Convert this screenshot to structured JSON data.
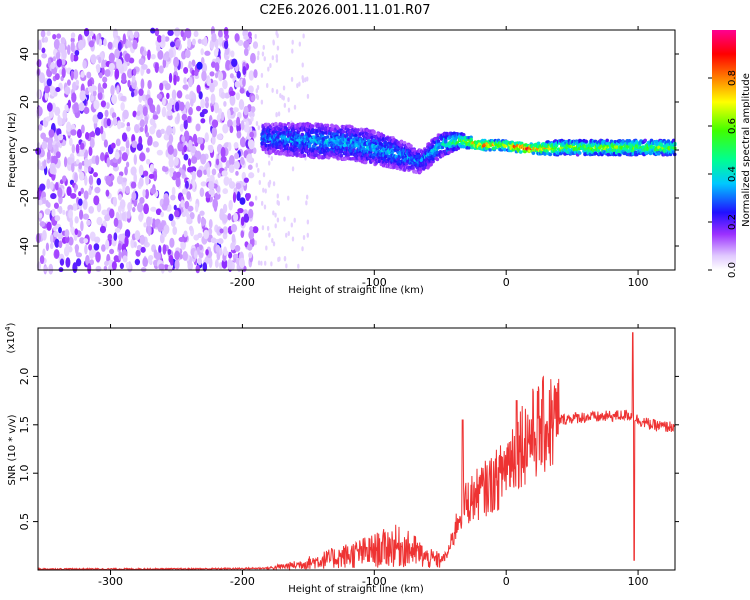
{
  "chart_data": [
    {
      "type": "heatmap",
      "title": "C2E6.2026.001.11.01.R07",
      "xlabel": "Height of straight line (km)",
      "ylabel": "Frequency (Hz)",
      "xlim": [
        -355,
        128
      ],
      "ylim": [
        -50,
        50
      ],
      "xticks": [
        -300,
        -200,
        -100,
        0,
        100
      ],
      "xtick_labels": [
        "-300",
        "-200",
        "-100",
        "0",
        "100"
      ],
      "yticks": [
        -40,
        -20,
        0,
        20,
        40
      ],
      "ytick_labels": [
        "-40",
        "-20",
        "0",
        "20",
        "40"
      ],
      "colorbar": {
        "label": "Normalized spectral amplitude",
        "range": [
          0,
          1
        ],
        "ticks": [
          0.0,
          0.2,
          0.4,
          0.6,
          0.8
        ],
        "tick_labels": [
          "0.0",
          "0.2",
          "0.4",
          "0.6",
          "0.8"
        ],
        "colors": [
          "#ffffff",
          "#e8d0ff",
          "#8a2be2",
          "#1a10ff",
          "#00ffff",
          "#00ff40",
          "#ffff00",
          "#ff8000",
          "#ff0000",
          "#ff00a0"
        ]
      },
      "noise_region": {
        "x_range": [
          -355,
          -190
        ],
        "amplitude": "low (0.05-0.2)"
      },
      "signal_track": [
        {
          "x": -185,
          "f_center": 5,
          "f_halfwidth": 6,
          "amp": 0.3
        },
        {
          "x": -150,
          "f_center": 4,
          "f_halfwidth": 7,
          "amp": 0.35
        },
        {
          "x": -120,
          "f_center": 3,
          "f_halfwidth": 7,
          "amp": 0.35
        },
        {
          "x": -100,
          "f_center": 1,
          "f_halfwidth": 7,
          "amp": 0.35
        },
        {
          "x": -80,
          "f_center": -2,
          "f_halfwidth": 6,
          "amp": 0.35
        },
        {
          "x": -65,
          "f_center": -5,
          "f_halfwidth": 5,
          "amp": 0.3
        },
        {
          "x": -50,
          "f_center": 2,
          "f_halfwidth": 5,
          "amp": 0.4
        },
        {
          "x": -35,
          "f_center": 4,
          "f_halfwidth": 3,
          "amp": 0.55
        },
        {
          "x": -20,
          "f_center": 2,
          "f_halfwidth": 2,
          "amp": 0.8
        },
        {
          "x": 0,
          "f_center": 2,
          "f_halfwidth": 2,
          "amp": 0.7
        },
        {
          "x": 10,
          "f_center": 1,
          "f_halfwidth": 2,
          "amp": 0.9
        },
        {
          "x": 20,
          "f_center": 0.5,
          "f_halfwidth": 2,
          "amp": 0.85
        },
        {
          "x": 40,
          "f_center": 1,
          "f_halfwidth": 3,
          "amp": 0.6
        },
        {
          "x": 90,
          "f_center": 1,
          "f_halfwidth": 3,
          "amp": 0.6
        },
        {
          "x": 128,
          "f_center": 1,
          "f_halfwidth": 3,
          "amp": 0.55
        }
      ]
    },
    {
      "type": "line",
      "xlabel": "Height of straight line (km)",
      "ylabel": "SNR (10 * v/v)",
      "y_multiplier": "(x10^4)",
      "y_multiplier_base": "(x10",
      "y_multiplier_exp": "4",
      "y_multiplier_close": ")",
      "xlim": [
        -355,
        128
      ],
      "ylim": [
        0,
        2.5
      ],
      "xticks": [
        -300,
        -200,
        -100,
        0,
        100
      ],
      "xtick_labels": [
        "-300",
        "-200",
        "-100",
        "0",
        "100"
      ],
      "yticks": [
        0.5,
        1.0,
        1.5,
        2.0
      ],
      "ytick_labels": [
        "0.5",
        "1.0",
        "1.5",
        "2.0"
      ],
      "color": "#ee3333",
      "series": [
        {
          "name": "SNR",
          "x": [
            -355,
            -300,
            -250,
            -200,
            -180,
            -160,
            -140,
            -120,
            -100,
            -85,
            -70,
            -60,
            -50,
            -45,
            -40,
            -35,
            -30,
            -25,
            -20,
            -15,
            -10,
            -5,
            0,
            10,
            20,
            30,
            40,
            50,
            60,
            70,
            80,
            90,
            95,
            100,
            110,
            120,
            128
          ],
          "y": [
            0.01,
            0.01,
            0.01,
            0.015,
            0.02,
            0.05,
            0.1,
            0.15,
            0.2,
            0.25,
            0.2,
            0.12,
            0.1,
            0.15,
            0.35,
            0.6,
            0.7,
            0.75,
            0.8,
            0.85,
            0.9,
            0.95,
            1.1,
            1.3,
            1.4,
            1.5,
            1.55,
            1.57,
            1.58,
            1.58,
            1.59,
            1.6,
            1.6,
            1.55,
            1.5,
            1.48,
            1.48
          ]
        }
      ],
      "spikes": [
        {
          "x": -33,
          "y": 1.55
        },
        {
          "x": 8,
          "y": 1.75
        },
        {
          "x": 96,
          "y": 2.45
        },
        {
          "x": 97,
          "y": 0.1
        }
      ]
    }
  ]
}
